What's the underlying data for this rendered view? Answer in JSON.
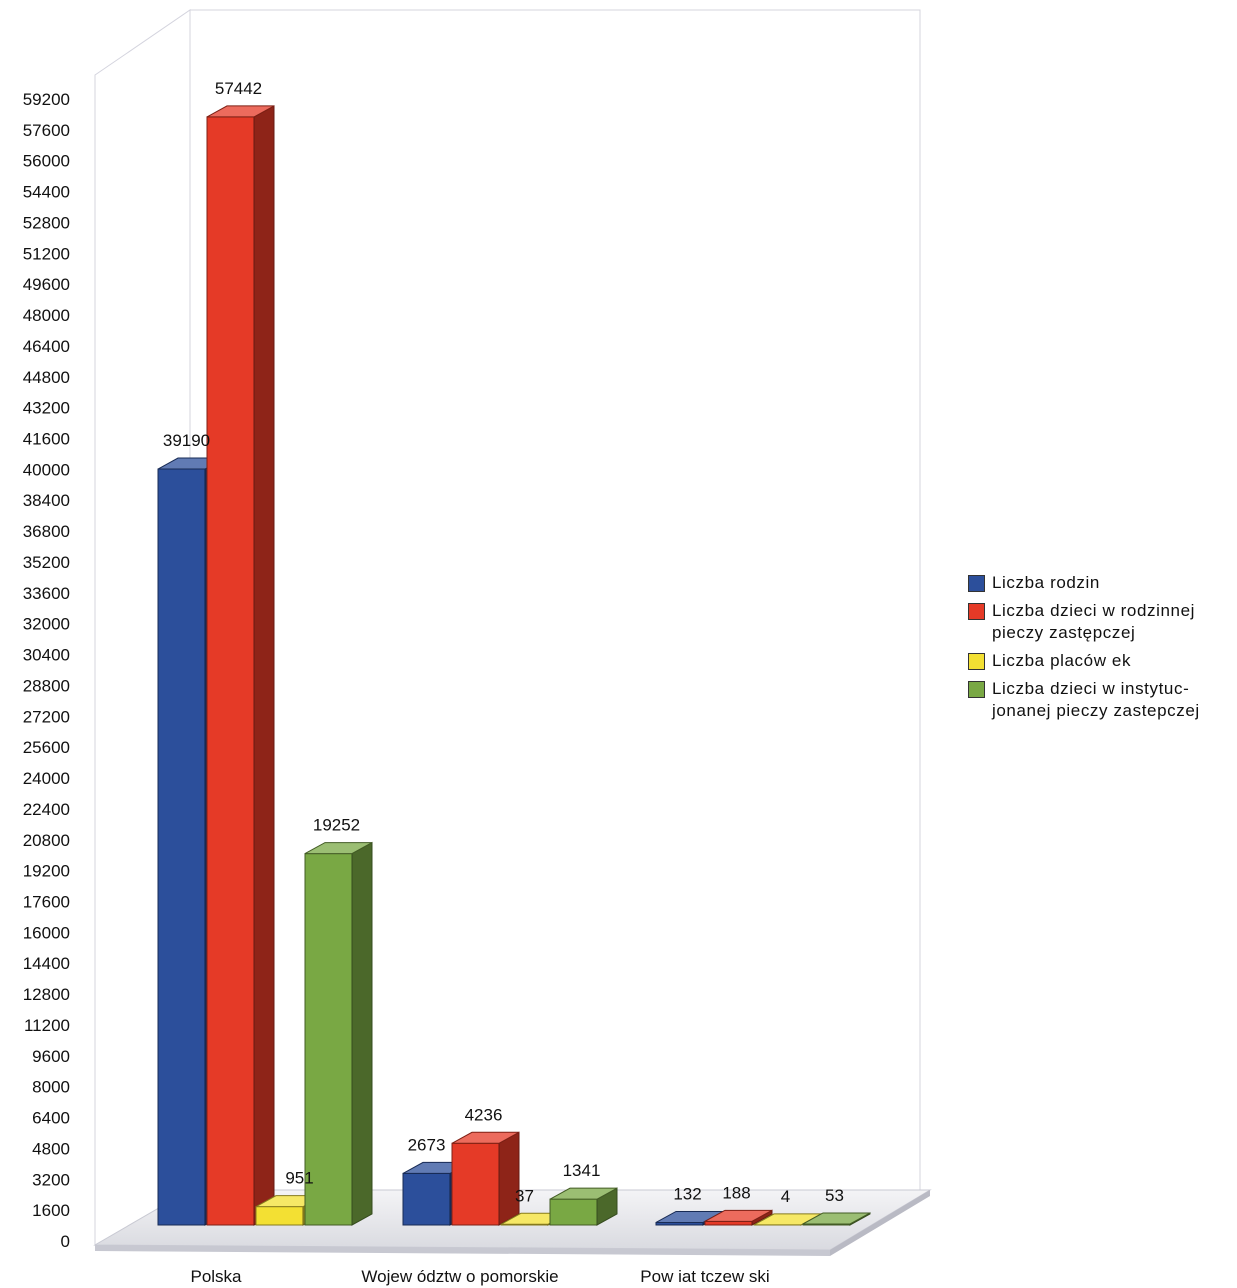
{
  "chart_data": {
    "type": "bar",
    "title": "",
    "xlabel": "",
    "ylabel": "",
    "categories": [
      "Polska",
      "Wojew ództw o pomorskie",
      "Pow iat tczew ski"
    ],
    "series": [
      {
        "name": "Liczba rodzin",
        "color": "#2c4f9b",
        "values": [
          39190,
          2673,
          132
        ]
      },
      {
        "name": "Liczba dzieci w rodzinnej pieczy zastępczej",
        "color": "#e53a27",
        "values": [
          57442,
          4236,
          188
        ]
      },
      {
        "name": "Liczba placów ek",
        "color": "#f3e033",
        "values": [
          951,
          37,
          4
        ]
      },
      {
        "name": "Liczba dzieci w instytuc-jonanej pieczy zastepczej",
        "color": "#79a844",
        "values": [
          19252,
          1341,
          53
        ]
      }
    ],
    "ylim": [
      0,
      59200
    ],
    "y_ticks": [
      0,
      1600,
      3200,
      4800,
      6400,
      8000,
      9600,
      11200,
      12800,
      14400,
      16000,
      17600,
      19200,
      20800,
      22400,
      24000,
      25600,
      27200,
      28800,
      30400,
      32000,
      33600,
      35200,
      36800,
      38400,
      40000,
      41600,
      43200,
      44800,
      46400,
      48000,
      49600,
      51200,
      52800,
      54400,
      56000,
      57600,
      59200
    ],
    "legend_position": "right",
    "grid": false
  },
  "legend": {
    "items": [
      {
        "label": "Liczba rodzin",
        "color": "#2c4f9b"
      },
      {
        "label": "Liczba dzieci w rodzinnej\npieczy zastępczej",
        "color": "#e53a27"
      },
      {
        "label": "Liczba placów ek",
        "color": "#f3e033"
      },
      {
        "label": "Liczba dzieci w instytuc-\njonanej pieczy zastepczej",
        "color": "#79a844"
      }
    ]
  }
}
